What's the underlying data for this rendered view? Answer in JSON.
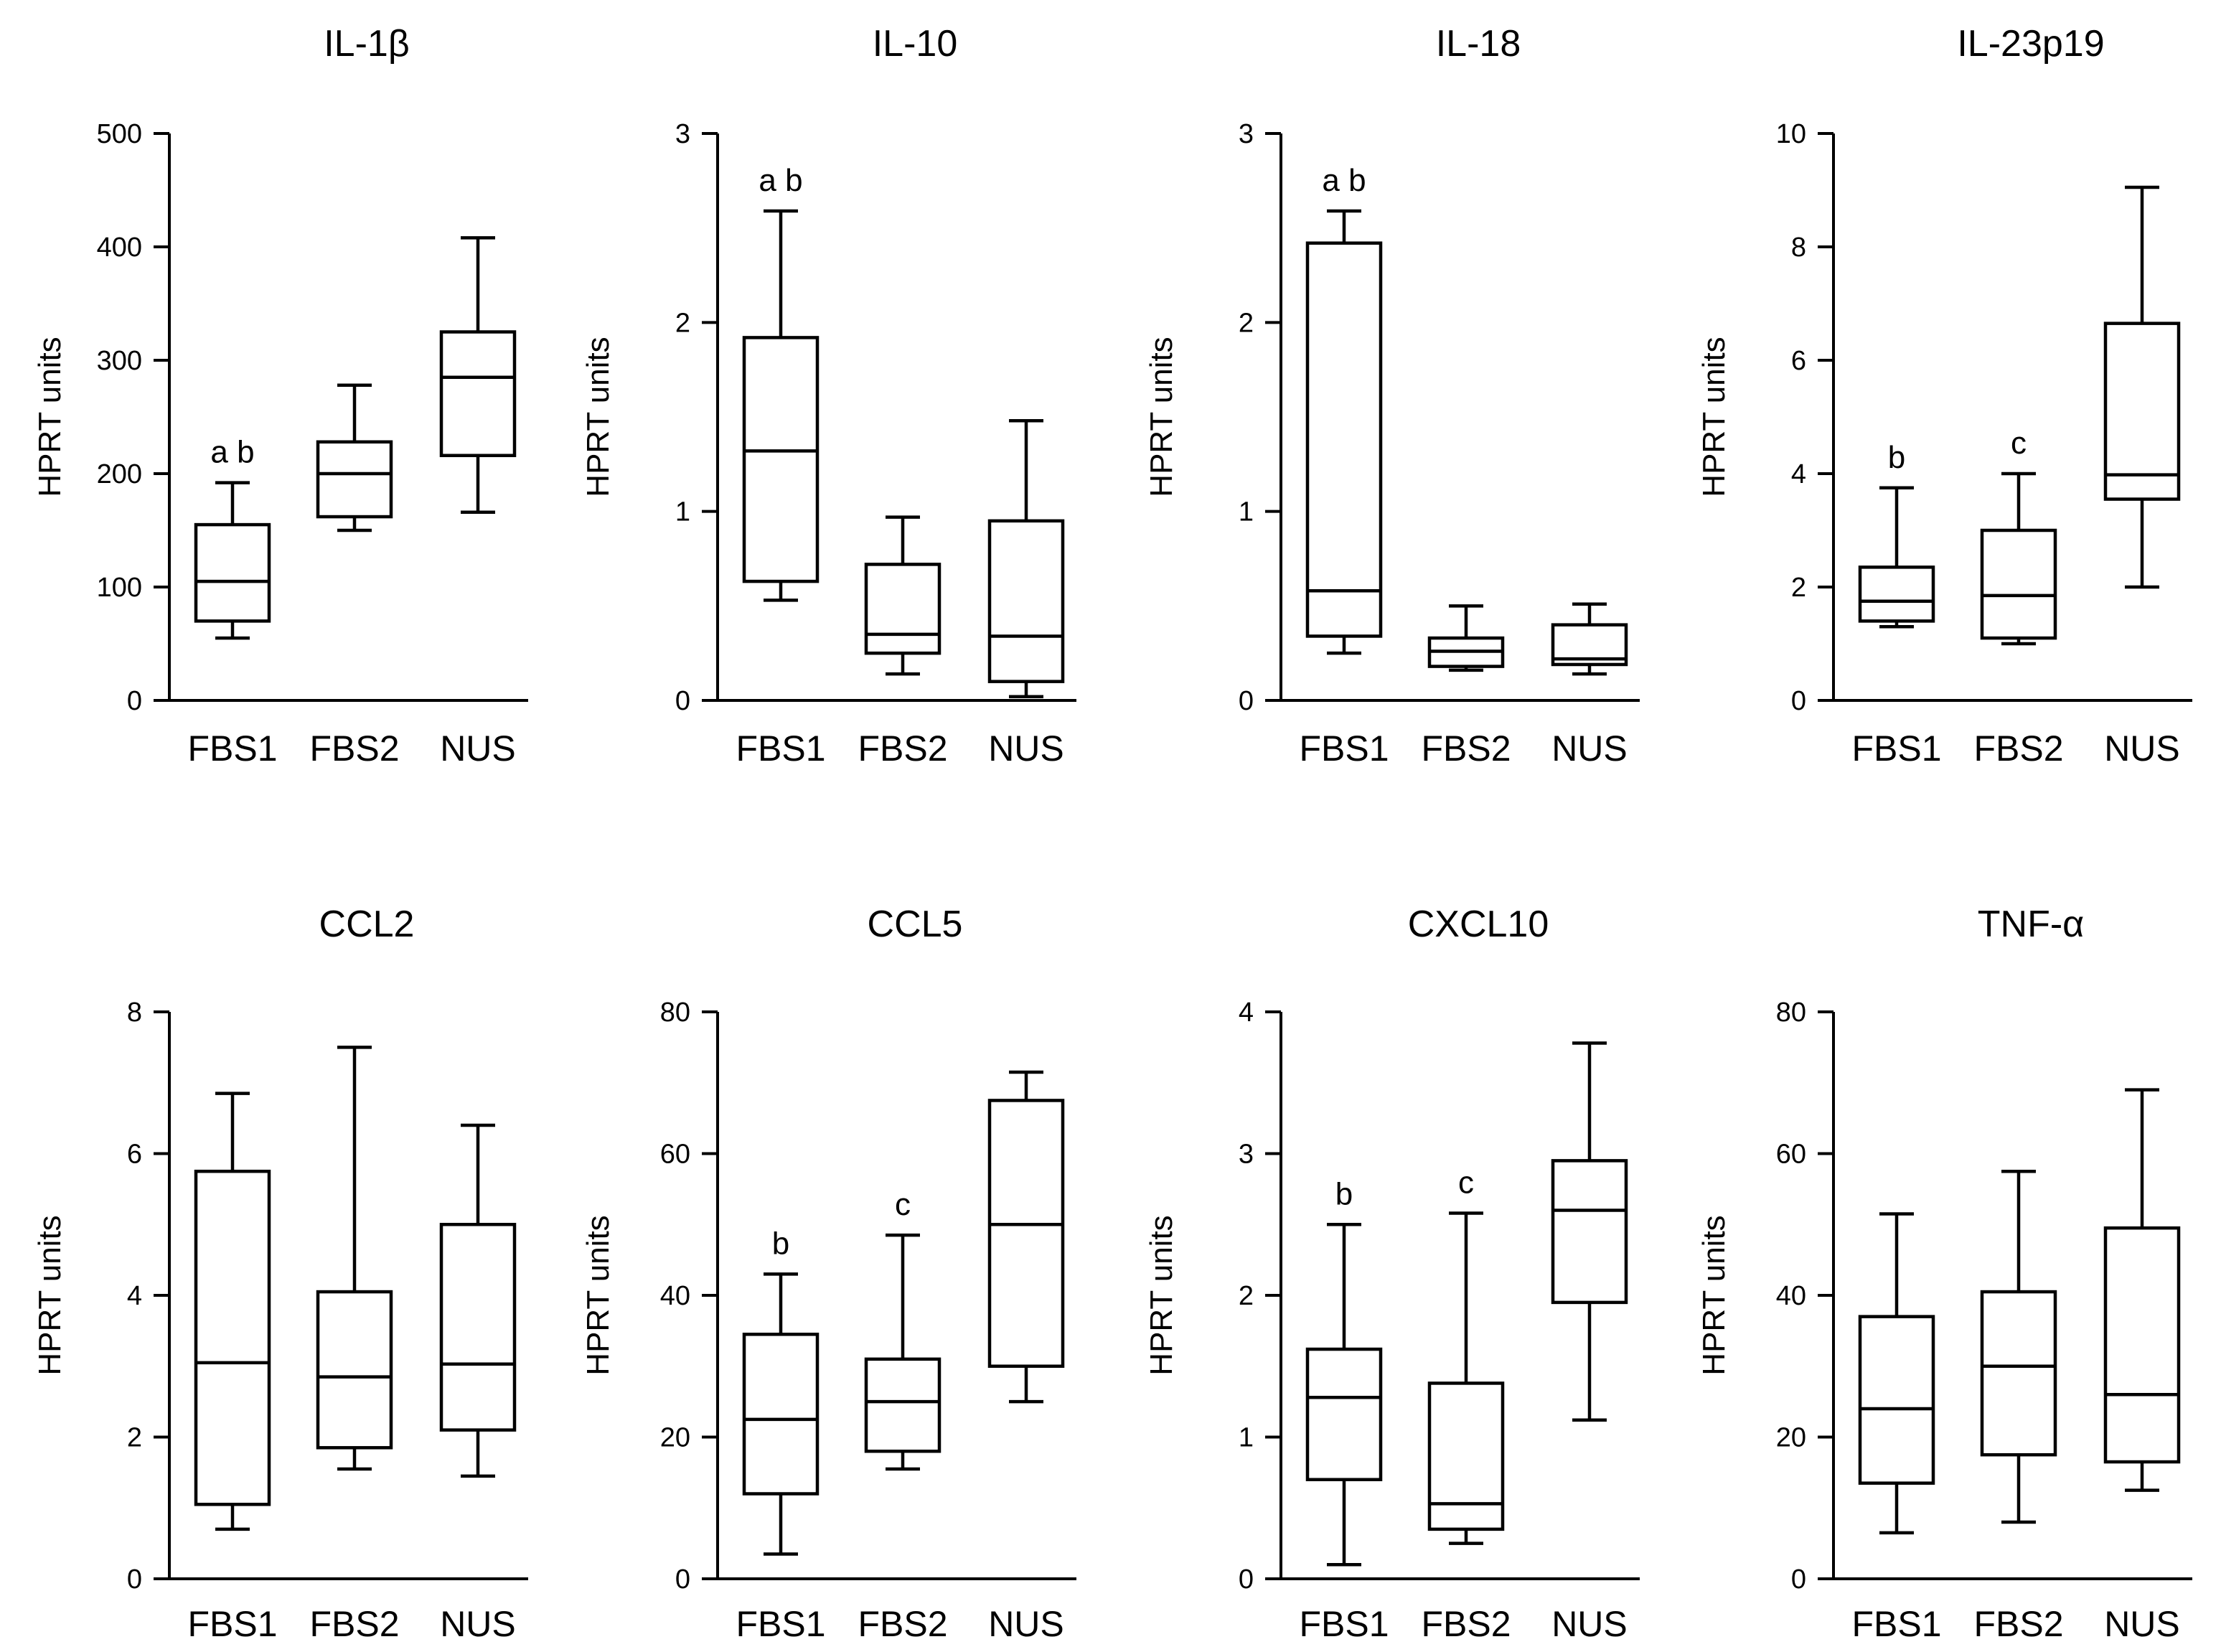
{
  "figure": {
    "panel_ids": [
      "il1b",
      "il10",
      "il18",
      "il23p19",
      "ccl2",
      "ccl5",
      "cxcl10",
      "tnfa"
    ]
  },
  "chart_data": [
    {
      "id": "il1b",
      "type": "box",
      "title": "IL-1β",
      "ylabel": "HPRT units",
      "ylim": [
        0,
        500
      ],
      "yticks": [
        0,
        100,
        200,
        300,
        400,
        500
      ],
      "categories": [
        "FBS1",
        "FBS2",
        "NUS"
      ],
      "boxes": [
        {
          "category": "FBS1",
          "min": 55,
          "q1": 70,
          "median": 105,
          "q3": 155,
          "max": 192,
          "annotation": "a b"
        },
        {
          "category": "FBS2",
          "min": 150,
          "q1": 162,
          "median": 200,
          "q3": 228,
          "max": 278,
          "annotation": ""
        },
        {
          "category": "NUS",
          "min": 166,
          "q1": 216,
          "median": 285,
          "q3": 325,
          "max": 408,
          "annotation": ""
        }
      ]
    },
    {
      "id": "il10",
      "type": "box",
      "title": "IL-10",
      "ylabel": "HPRT units",
      "ylim": [
        0,
        3
      ],
      "yticks": [
        0,
        1,
        2,
        3
      ],
      "categories": [
        "FBS1",
        "FBS2",
        "NUS"
      ],
      "boxes": [
        {
          "category": "FBS1",
          "min": 0.53,
          "q1": 0.63,
          "median": 1.32,
          "q3": 1.92,
          "max": 2.59,
          "annotation": "a b"
        },
        {
          "category": "FBS2",
          "min": 0.14,
          "q1": 0.25,
          "median": 0.35,
          "q3": 0.72,
          "max": 0.97,
          "annotation": ""
        },
        {
          "category": "NUS",
          "min": 0.02,
          "q1": 0.1,
          "median": 0.34,
          "q3": 0.95,
          "max": 1.48,
          "annotation": ""
        }
      ]
    },
    {
      "id": "il18",
      "type": "box",
      "title": "IL-18",
      "ylabel": "HPRT units",
      "ylim": [
        0,
        3
      ],
      "yticks": [
        0,
        1,
        2,
        3
      ],
      "categories": [
        "FBS1",
        "FBS2",
        "NUS"
      ],
      "boxes": [
        {
          "category": "FBS1",
          "min": 0.25,
          "q1": 0.34,
          "median": 0.58,
          "q3": 2.42,
          "max": 2.59,
          "annotation": "a b"
        },
        {
          "category": "FBS2",
          "min": 0.16,
          "q1": 0.18,
          "median": 0.26,
          "q3": 0.33,
          "max": 0.5,
          "annotation": ""
        },
        {
          "category": "NUS",
          "min": 0.14,
          "q1": 0.19,
          "median": 0.22,
          "q3": 0.4,
          "max": 0.51,
          "annotation": ""
        }
      ]
    },
    {
      "id": "il23p19",
      "type": "box",
      "title": "IL-23p19",
      "ylabel": "HPRT units",
      "ylim": [
        0,
        10
      ],
      "yticks": [
        0,
        2,
        4,
        6,
        8,
        10
      ],
      "categories": [
        "FBS1",
        "FBS2",
        "NUS"
      ],
      "boxes": [
        {
          "category": "FBS1",
          "min": 1.3,
          "q1": 1.4,
          "median": 1.75,
          "q3": 2.35,
          "max": 3.75,
          "annotation": "b"
        },
        {
          "category": "FBS2",
          "min": 1.0,
          "q1": 1.1,
          "median": 1.85,
          "q3": 3.0,
          "max": 4.0,
          "annotation": "c"
        },
        {
          "category": "NUS",
          "min": 2.0,
          "q1": 3.55,
          "median": 3.98,
          "q3": 6.65,
          "max": 9.05,
          "annotation": ""
        }
      ]
    },
    {
      "id": "ccl2",
      "type": "box",
      "title": "CCL2",
      "ylabel": "HPRT units",
      "ylim": [
        0,
        8
      ],
      "yticks": [
        0,
        2,
        4,
        6,
        8
      ],
      "categories": [
        "FBS1",
        "FBS2",
        "NUS"
      ],
      "boxes": [
        {
          "category": "FBS1",
          "min": 0.7,
          "q1": 1.05,
          "median": 3.05,
          "q3": 5.75,
          "max": 6.85,
          "annotation": ""
        },
        {
          "category": "FBS2",
          "min": 1.55,
          "q1": 1.85,
          "median": 2.85,
          "q3": 4.05,
          "max": 7.5,
          "annotation": ""
        },
        {
          "category": "NUS",
          "min": 1.45,
          "q1": 2.1,
          "median": 3.03,
          "q3": 5.0,
          "max": 6.4,
          "annotation": ""
        }
      ]
    },
    {
      "id": "ccl5",
      "type": "box",
      "title": "CCL5",
      "ylabel": "HPRT units",
      "ylim": [
        0,
        80
      ],
      "yticks": [
        0,
        20,
        40,
        60,
        80
      ],
      "categories": [
        "FBS1",
        "FBS2",
        "NUS"
      ],
      "boxes": [
        {
          "category": "FBS1",
          "min": 3.5,
          "q1": 12,
          "median": 22.5,
          "q3": 34.5,
          "max": 43,
          "annotation": "b"
        },
        {
          "category": "FBS2",
          "min": 15.5,
          "q1": 18,
          "median": 25,
          "q3": 31,
          "max": 48.5,
          "annotation": "c"
        },
        {
          "category": "NUS",
          "min": 25,
          "q1": 30,
          "median": 50,
          "q3": 67.5,
          "max": 71.5,
          "annotation": ""
        }
      ]
    },
    {
      "id": "cxcl10",
      "type": "box",
      "title": "CXCL10",
      "ylabel": "HPRT units",
      "ylim": [
        0,
        4
      ],
      "yticks": [
        0,
        1,
        2,
        3,
        4
      ],
      "categories": [
        "FBS1",
        "FBS2",
        "NUS"
      ],
      "boxes": [
        {
          "category": "FBS1",
          "min": 0.1,
          "q1": 0.7,
          "median": 1.28,
          "q3": 1.62,
          "max": 2.5,
          "annotation": "b"
        },
        {
          "category": "FBS2",
          "min": 0.25,
          "q1": 0.35,
          "median": 0.53,
          "q3": 1.38,
          "max": 2.58,
          "annotation": "c"
        },
        {
          "category": "NUS",
          "min": 1.12,
          "q1": 1.95,
          "median": 2.6,
          "q3": 2.95,
          "max": 3.78,
          "annotation": ""
        }
      ]
    },
    {
      "id": "tnfa",
      "type": "box",
      "title": "TNF-α",
      "ylabel": "HPRT units",
      "ylim": [
        0,
        80
      ],
      "yticks": [
        0,
        20,
        40,
        60,
        80
      ],
      "categories": [
        "FBS1",
        "FBS2",
        "NUS"
      ],
      "boxes": [
        {
          "category": "FBS1",
          "min": 6.5,
          "q1": 13.5,
          "median": 24,
          "q3": 37,
          "max": 51.5,
          "annotation": ""
        },
        {
          "category": "FBS2",
          "min": 8,
          "q1": 17.5,
          "median": 30,
          "q3": 40.5,
          "max": 57.5,
          "annotation": ""
        },
        {
          "category": "NUS",
          "min": 12.5,
          "q1": 16.5,
          "median": 26,
          "q3": 49.5,
          "max": 69,
          "annotation": ""
        }
      ]
    }
  ]
}
